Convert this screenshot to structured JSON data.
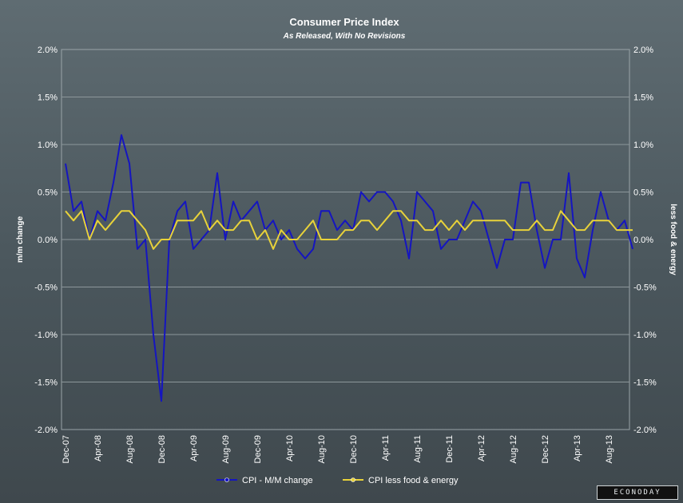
{
  "chart_data": {
    "type": "line",
    "title": "Consumer Price Index",
    "subtitle": "As Released, With No Revisions",
    "ylabel_left": "m/m change",
    "ylabel_right": "less food & energy",
    "ylim": [
      -2.0,
      2.0
    ],
    "yticks": [
      "2.0%",
      "1.5%",
      "1.0%",
      "0.5%",
      "0.0%",
      "-0.5%",
      "-1.0%",
      "-1.5%",
      "-2.0%"
    ],
    "ytick_values": [
      2.0,
      1.5,
      1.0,
      0.5,
      0.0,
      -0.5,
      -1.0,
      -1.5,
      -2.0
    ],
    "grid": true,
    "legend_position": "bottom",
    "x_tick_labels": [
      "Dec-07",
      "Apr-08",
      "Aug-08",
      "Dec-08",
      "Apr-09",
      "Aug-09",
      "Dec-09",
      "Apr-10",
      "Aug-10",
      "Dec-10",
      "Apr-11",
      "Aug-11",
      "Dec-11",
      "Apr-12",
      "Aug-12",
      "Dec-12",
      "Apr-13",
      "Aug-13"
    ],
    "x_tick_every": 4,
    "series": [
      {
        "name": "CPI - M/M change",
        "color": "#1515c0",
        "values": [
          0.8,
          0.3,
          0.4,
          0.0,
          0.3,
          0.2,
          0.6,
          1.1,
          0.8,
          -0.1,
          0.0,
          -1.0,
          -1.7,
          0.0,
          0.3,
          0.4,
          -0.1,
          0.0,
          0.1,
          0.7,
          0.0,
          0.4,
          0.2,
          0.3,
          0.4,
          0.1,
          0.2,
          0.0,
          0.1,
          -0.1,
          -0.2,
          -0.1,
          0.3,
          0.3,
          0.1,
          0.2,
          0.1,
          0.5,
          0.4,
          0.5,
          0.5,
          0.4,
          0.2,
          -0.2,
          0.5,
          0.4,
          0.3,
          -0.1,
          0.0,
          0.0,
          0.2,
          0.4,
          0.3,
          0.0,
          -0.3,
          0.0,
          0.0,
          0.6,
          0.6,
          0.1,
          -0.3,
          0.0,
          0.0,
          0.7,
          -0.2,
          -0.4,
          0.1,
          0.5,
          0.2,
          0.1,
          0.2,
          -0.1
        ]
      },
      {
        "name": "CPI less food & energy",
        "color": "#e8d23a",
        "values": [
          0.3,
          0.2,
          0.3,
          0.0,
          0.2,
          0.1,
          0.2,
          0.3,
          0.3,
          0.2,
          0.1,
          -0.1,
          0.0,
          0.0,
          0.2,
          0.2,
          0.2,
          0.3,
          0.1,
          0.2,
          0.1,
          0.1,
          0.2,
          0.2,
          0.0,
          0.1,
          -0.1,
          0.1,
          0.0,
          0.0,
          0.1,
          0.2,
          0.0,
          0.0,
          0.0,
          0.1,
          0.1,
          0.2,
          0.2,
          0.1,
          0.2,
          0.3,
          0.3,
          0.2,
          0.2,
          0.1,
          0.1,
          0.2,
          0.1,
          0.2,
          0.1,
          0.2,
          0.2,
          0.2,
          0.2,
          0.2,
          0.1,
          0.1,
          0.1,
          0.2,
          0.1,
          0.1,
          0.3,
          0.2,
          0.1,
          0.1,
          0.2,
          0.2,
          0.2,
          0.1,
          0.1,
          0.1
        ]
      }
    ]
  },
  "brand_label": "ECONODAY"
}
